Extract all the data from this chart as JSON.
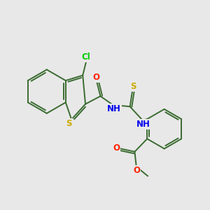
{
  "bg_color": "#e8e8e8",
  "bond_color": "#3a6b30",
  "bond_width": 1.4,
  "atom_colors": {
    "Cl": "#00cc00",
    "S": "#ccaa00",
    "O": "#ff2200",
    "N": "#0000ee",
    "C": "#3a6b30"
  },
  "font_size": 8.5,
  "figsize": [
    3.0,
    3.0
  ],
  "dpi": 100
}
